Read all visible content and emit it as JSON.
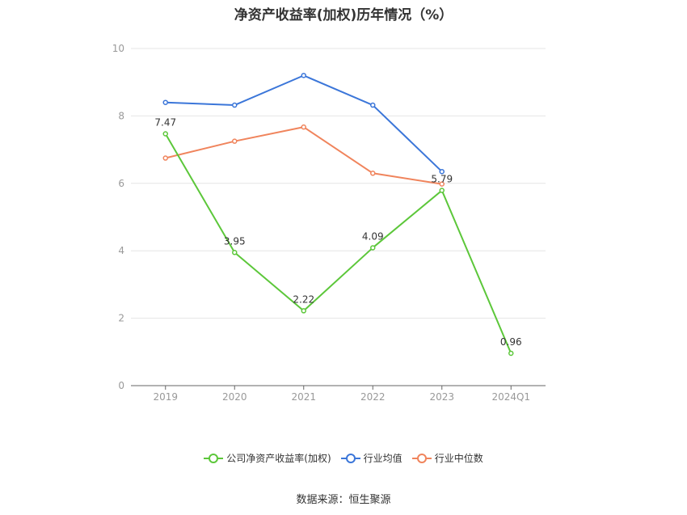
{
  "title": "净资产收益率(加权)历年情况（%）",
  "source": "数据来源：恒生聚源",
  "chart_data": {
    "type": "line",
    "categories": [
      "2019",
      "2020",
      "2021",
      "2022",
      "2023",
      "2024Q1"
    ],
    "ylim": [
      0,
      10
    ],
    "yticks": [
      0,
      2,
      4,
      6,
      8,
      10
    ],
    "grid": true,
    "legend_position": "bottom",
    "series": [
      {
        "name": "公司净资产收益率(加权)",
        "color": "#5cc73a",
        "values": [
          7.47,
          3.95,
          2.22,
          4.09,
          5.79,
          0.96
        ],
        "labels": [
          "7.47",
          "3.95",
          "2.22",
          "4.09",
          "5.79",
          "0.96"
        ]
      },
      {
        "name": "行业均值",
        "color": "#3b76d9",
        "values": [
          8.4,
          8.32,
          9.2,
          8.32,
          6.35,
          null
        ]
      },
      {
        "name": "行业中位数",
        "color": "#f0845c",
        "values": [
          6.75,
          7.25,
          7.67,
          6.3,
          5.98,
          null
        ]
      }
    ]
  }
}
